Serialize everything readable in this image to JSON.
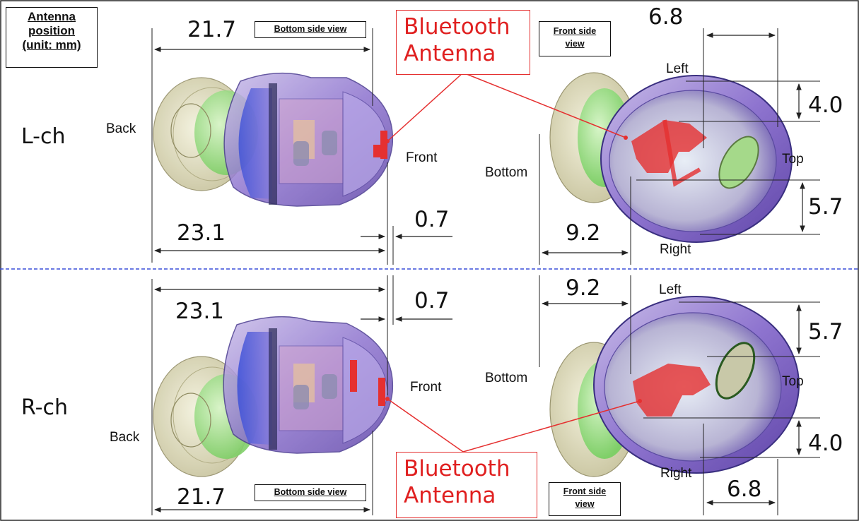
{
  "legend": {
    "line1": "Antenna",
    "line2": "position",
    "line3": "(unit: mm)"
  },
  "top": {
    "channel": "L-ch",
    "bottom_view": {
      "label": "Bottom side view",
      "dim_upper": "21.7",
      "dim_lower": "23.1",
      "dim_offset": "0.7",
      "back": "Back",
      "front": "Front"
    },
    "antenna": {
      "line1": "Bluetooth",
      "line2": "Antenna"
    },
    "front_view": {
      "label_line1": "Front side",
      "label_line2": "view",
      "dim_h": "6.8",
      "dim_v_upper": "4.0",
      "dim_v_lower": "5.7",
      "dim_h_lower": "9.2",
      "left": "Left",
      "right": "Right",
      "top": "Top",
      "bottom": "Bottom"
    }
  },
  "bottom": {
    "channel": "R-ch",
    "bottom_view": {
      "label": "Bottom side view",
      "dim_upper": "23.1",
      "dim_lower": "21.7",
      "dim_offset": "0.7",
      "back": "Back",
      "front": "Front"
    },
    "antenna": {
      "line1": "Bluetooth",
      "line2": "Antenna"
    },
    "front_view": {
      "label_line1": "Front side",
      "label_line2": "view",
      "dim_h": "9.2",
      "dim_v_upper": "5.7",
      "dim_v_lower": "4.0",
      "dim_h_lower": "6.8",
      "left": "Left",
      "right": "Right",
      "top": "Top",
      "bottom": "Bottom"
    }
  },
  "colors": {
    "antenna": "#e53030",
    "divider": "#3a4fd8",
    "shell": "#7c5cc8",
    "tip": "#e8e6c8",
    "foam": "#8fe07a"
  }
}
